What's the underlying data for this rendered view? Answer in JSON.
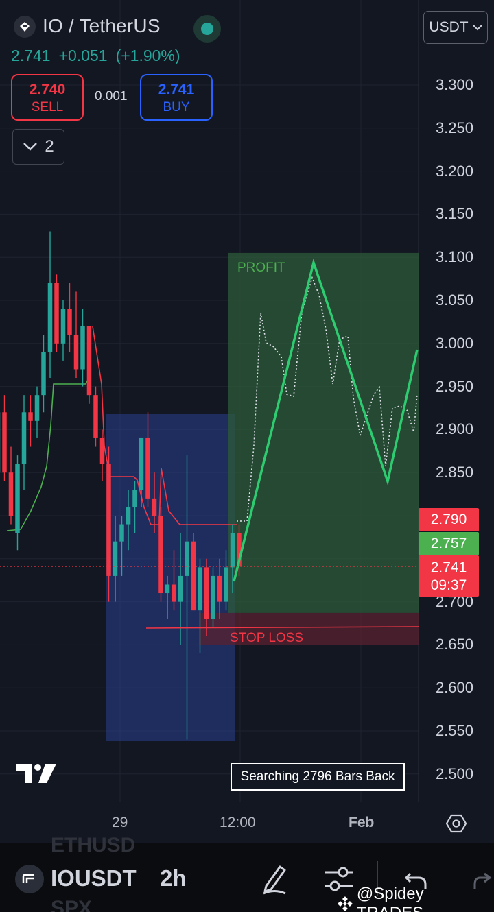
{
  "header": {
    "symbol": "IO / TetherUS",
    "last_price": "2.741",
    "change": "+0.051",
    "change_pct": "(+1.90%)",
    "sell_price": "2.740",
    "sell_label": "SELL",
    "spread": "0.001",
    "buy_price": "2.741",
    "buy_label": "BUY",
    "indicators_count": "2",
    "currency": "USDT"
  },
  "price_axis": {
    "labels": [
      "3.300",
      "3.250",
      "3.200",
      "3.150",
      "3.100",
      "3.050",
      "3.000",
      "2.950",
      "2.900",
      "2.850",
      "2.700",
      "2.650",
      "2.600",
      "2.550",
      "2.500"
    ]
  },
  "badges": {
    "upper_level": "2.790",
    "mid_level": "2.757",
    "current_price": "2.741",
    "countdown": "09:37"
  },
  "time_axis": {
    "labels": [
      "29",
      "12:00",
      "Feb"
    ]
  },
  "chart_overlay": {
    "profit_label": "PROFIT",
    "stop_loss_label": "STOP LOSS",
    "searching_text": "Searching 2796 Bars Back"
  },
  "toolbar": {
    "symbol": "IOUSDT",
    "interval": "2h",
    "ghost_above": "ETHUSD",
    "ghost_below": "SPX"
  },
  "watermark": "@Spidey TRADES",
  "colors": {
    "background": "#131722",
    "bull": "#26a69a",
    "bear": "#f23645",
    "buy_blue": "#2962ff",
    "profit_green": "#4caf50"
  },
  "chart_data": {
    "type": "candlestick",
    "title": "IO / TetherUS",
    "interval": "2h",
    "ylim": [
      2.48,
      3.33
    ],
    "candles": [
      [
        2.85,
        2.93,
        2.8,
        2.92
      ],
      [
        2.92,
        2.94,
        2.84,
        2.85
      ],
      [
        2.85,
        2.88,
        2.79,
        2.8
      ],
      [
        2.78,
        2.87,
        2.76,
        2.86
      ],
      [
        2.86,
        2.94,
        2.83,
        2.92
      ],
      [
        2.92,
        2.94,
        2.88,
        2.91
      ],
      [
        2.91,
        2.95,
        2.89,
        2.94
      ],
      [
        2.94,
        3.01,
        2.92,
        2.99
      ],
      [
        2.99,
        3.13,
        2.96,
        3.07
      ],
      [
        3.07,
        3.08,
        2.99,
        3.0
      ],
      [
        3.0,
        3.05,
        2.98,
        3.04
      ],
      [
        3.04,
        3.07,
        2.99,
        3.01
      ],
      [
        3.01,
        3.06,
        2.96,
        2.97
      ],
      [
        2.97,
        3.04,
        2.95,
        3.02
      ],
      [
        3.02,
        3.02,
        2.93,
        2.94
      ],
      [
        2.94,
        2.95,
        2.88,
        2.89
      ],
      [
        2.89,
        2.9,
        2.84,
        2.86
      ],
      [
        2.86,
        2.88,
        2.7,
        2.73
      ],
      [
        2.73,
        2.8,
        2.7,
        2.77
      ],
      [
        2.77,
        2.8,
        2.73,
        2.79
      ],
      [
        2.79,
        2.83,
        2.76,
        2.81
      ],
      [
        2.81,
        2.84,
        2.78,
        2.83
      ],
      [
        2.83,
        2.89,
        2.81,
        2.89
      ],
      [
        2.89,
        2.92,
        2.81,
        2.82
      ],
      [
        2.82,
        2.85,
        2.78,
        2.8
      ],
      [
        2.8,
        2.81,
        2.7,
        2.71
      ],
      [
        2.71,
        2.73,
        2.68,
        2.72
      ],
      [
        2.72,
        2.76,
        2.69,
        2.7
      ],
      [
        2.7,
        2.78,
        2.65,
        2.73
      ],
      [
        2.73,
        2.87,
        2.54,
        2.77
      ],
      [
        2.77,
        2.78,
        2.69,
        2.69
      ],
      [
        2.69,
        2.75,
        2.64,
        2.74
      ],
      [
        2.74,
        2.75,
        2.66,
        2.68
      ],
      [
        2.68,
        2.74,
        2.67,
        2.73
      ],
      [
        2.73,
        2.75,
        2.68,
        2.7
      ],
      [
        2.7,
        2.76,
        2.69,
        2.74
      ],
      [
        2.74,
        2.79,
        2.71,
        2.78
      ],
      [
        2.78,
        2.79,
        2.73,
        2.741
      ]
    ],
    "positions": {
      "entry_price": 2.757,
      "take_profit": 3.105,
      "stop_loss": 2.687,
      "upper_level": 2.79,
      "current_price": 2.741
    }
  }
}
